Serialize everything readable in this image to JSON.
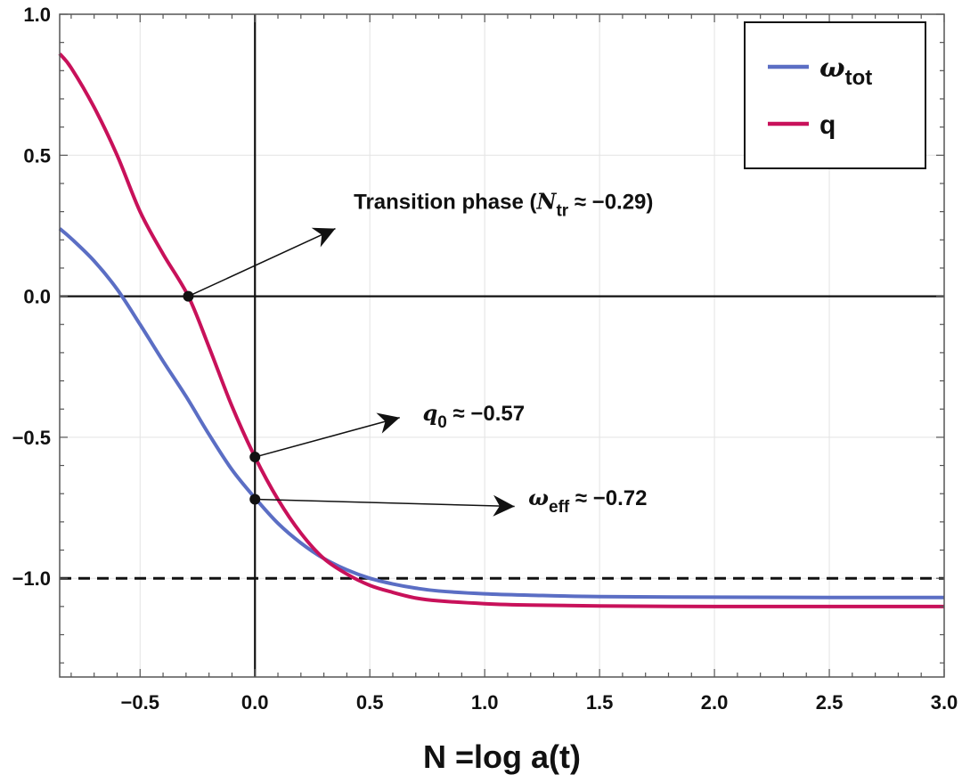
{
  "chart_data": {
    "type": "line",
    "title": "",
    "xlabel": "N =log a(t)",
    "ylabel": "",
    "xlim": [
      -0.85,
      3.0
    ],
    "ylim": [
      -1.35,
      1.0
    ],
    "grid": true,
    "legend_placement": "top-right",
    "x_ticks": [
      -0.5,
      0.0,
      0.5,
      1.0,
      1.5,
      2.0,
      2.5,
      3.0
    ],
    "x_tick_labels": [
      "-0.5",
      "0.0",
      "0.5",
      "1.0",
      "1.5",
      "2.0",
      "2.5",
      "3.0"
    ],
    "y_ticks": [
      -1.0,
      -0.5,
      0.0,
      0.5,
      1.0
    ],
    "y_tick_labels": [
      "-1.0",
      "-0.5",
      "0.0",
      "0.5",
      "1.0"
    ],
    "series": [
      {
        "name": "ω_tot",
        "legend_main": "ω",
        "legend_sub": "tot",
        "color": "#5b6ec4",
        "x": [
          -0.85,
          -0.8,
          -0.7,
          -0.6,
          -0.5,
          -0.4,
          -0.3,
          -0.2,
          -0.1,
          0.0,
          0.1,
          0.2,
          0.3,
          0.4,
          0.5,
          0.6,
          0.7,
          0.8,
          1.0,
          1.2,
          1.5,
          2.0,
          2.5,
          3.0
        ],
        "values": [
          0.24,
          0.205,
          0.125,
          0.025,
          -0.1,
          -0.23,
          -0.355,
          -0.49,
          -0.615,
          -0.715,
          -0.805,
          -0.875,
          -0.93,
          -0.97,
          -1.0,
          -1.02,
          -1.035,
          -1.045,
          -1.055,
          -1.06,
          -1.065,
          -1.067,
          -1.068,
          -1.068
        ]
      },
      {
        "name": "q",
        "legend_main": "q",
        "legend_sub": "",
        "color": "#c8115a",
        "x": [
          -0.85,
          -0.8,
          -0.7,
          -0.6,
          -0.5,
          -0.4,
          -0.29,
          -0.2,
          -0.1,
          0.0,
          0.1,
          0.2,
          0.3,
          0.4,
          0.5,
          0.6,
          0.7,
          0.8,
          1.0,
          1.2,
          1.5,
          2.0,
          2.5,
          3.0
        ],
        "values": [
          0.86,
          0.81,
          0.67,
          0.5,
          0.3,
          0.15,
          0.0,
          -0.18,
          -0.39,
          -0.57,
          -0.72,
          -0.84,
          -0.93,
          -0.985,
          -1.025,
          -1.05,
          -1.07,
          -1.08,
          -1.09,
          -1.095,
          -1.098,
          -1.1,
          -1.1,
          -1.1
        ]
      }
    ],
    "reference_lines": [
      {
        "axis": "y",
        "value": 0.0,
        "style": "solid"
      },
      {
        "axis": "x",
        "value": 0.0,
        "style": "solid"
      },
      {
        "axis": "y",
        "value": -1.0,
        "style": "dashed"
      }
    ],
    "annotations": [
      {
        "point": [
          -0.29,
          0.0
        ],
        "arrow_to": [
          0.35,
          0.24
        ],
        "prefix": "Transition phase (",
        "sym": "N",
        "sub": "tr",
        "suffix": " ≈ -0.29)",
        "label_at": [
          0.43,
          0.31
        ]
      },
      {
        "point": [
          0.0,
          -0.57
        ],
        "arrow_to": [
          0.63,
          -0.43
        ],
        "prefix": "",
        "sym": "q",
        "sub": "0",
        "suffix": " ≈ -0.57",
        "label_at": [
          0.73,
          -0.44
        ]
      },
      {
        "point": [
          0.0,
          -0.72
        ],
        "arrow_to": [
          1.13,
          -0.745
        ],
        "prefix": "",
        "sym": "ω",
        "sub": "eff",
        "suffix": " ≈ -0.72",
        "label_at": [
          1.19,
          -0.74
        ]
      }
    ]
  }
}
